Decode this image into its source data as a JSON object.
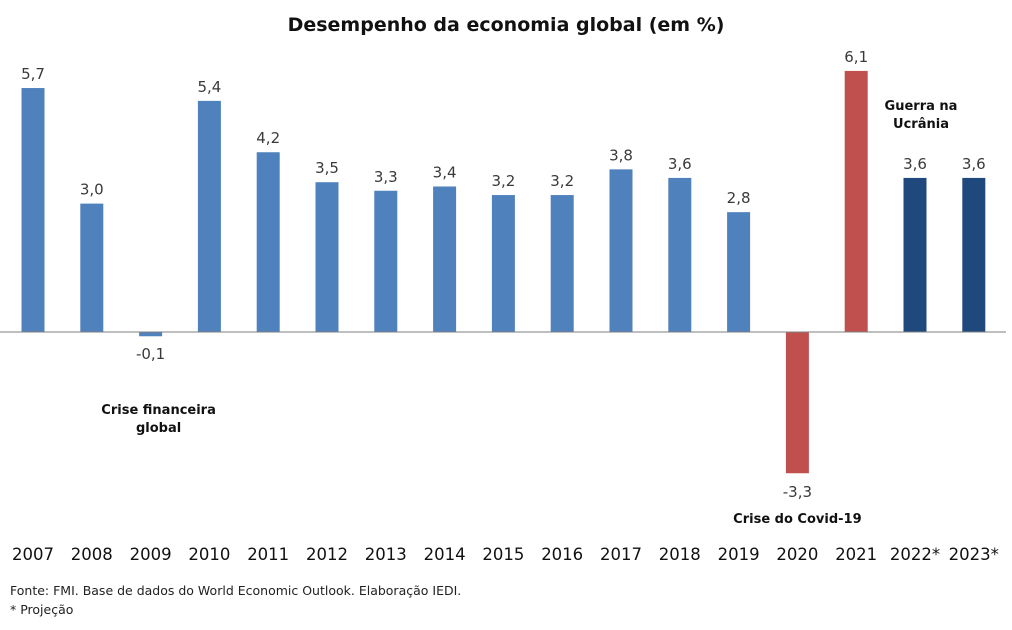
{
  "chart_data": {
    "type": "bar",
    "title": "Desempenho da economia global (em %)",
    "categories": [
      "2007",
      "2008",
      "2009",
      "2010",
      "2011",
      "2012",
      "2013",
      "2014",
      "2015",
      "2016",
      "2017",
      "2018",
      "2019",
      "2020",
      "2021",
      "2022*",
      "2023*"
    ],
    "values": [
      5.7,
      3.0,
      -0.1,
      5.4,
      4.2,
      3.5,
      3.3,
      3.4,
      3.2,
      3.2,
      3.8,
      3.6,
      2.8,
      -3.3,
      6.1,
      3.6,
      3.6
    ],
    "value_labels": [
      "5,7",
      "3,0",
      "-0,1",
      "5,4",
      "4,2",
      "3,5",
      "3,3",
      "3,4",
      "3,2",
      "3,2",
      "3,8",
      "3,6",
      "2,8",
      "-3,3",
      "6,1",
      "3,6",
      "3,6"
    ],
    "colors": [
      "#4f81bd",
      "#4f81bd",
      "#4f81bd",
      "#4f81bd",
      "#4f81bd",
      "#4f81bd",
      "#4f81bd",
      "#4f81bd",
      "#4f81bd",
      "#4f81bd",
      "#4f81bd",
      "#4f81bd",
      "#4f81bd",
      "#c0504d",
      "#c0504d",
      "#1f497d",
      "#1f497d"
    ],
    "ylim": [
      -3.3,
      6.1
    ],
    "grid": false,
    "annotations": [
      {
        "text_lines": [
          "Crise financeira",
          "global"
        ],
        "category": "2009"
      },
      {
        "text_lines": [
          "Crise do Covid-19"
        ],
        "category": "2020"
      },
      {
        "text_lines": [
          "Guerra na",
          "Ucrânia"
        ],
        "category": "2022*"
      }
    ]
  },
  "footer": {
    "source": "Fonte: FMI. Base de dados do World Economic Outlook. Elaboração IEDI.",
    "note": "* Projeção"
  }
}
